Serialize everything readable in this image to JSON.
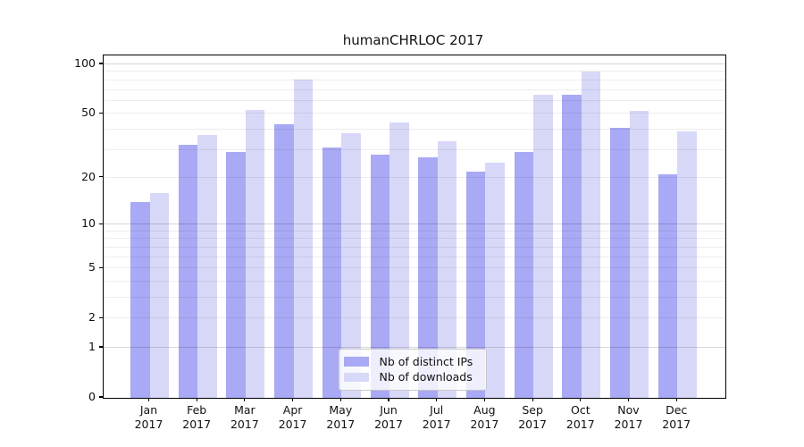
{
  "title": "humanCHRLOC 2017",
  "chart_data": {
    "type": "bar",
    "title": "humanCHRLOC 2017",
    "scale": "log1p",
    "grid": true,
    "legend_position": "lower center",
    "xlabel": "",
    "ylabel": "",
    "categories": [
      "Jan 2017",
      "Feb 2017",
      "Mar 2017",
      "Apr 2017",
      "May 2017",
      "Jun 2017",
      "Jul 2017",
      "Aug 2017",
      "Sep 2017",
      "Oct 2017",
      "Nov 2017",
      "Dec 2017"
    ],
    "series": [
      {
        "name": "Nb of distinct IPs",
        "color": "#a9a9f5",
        "values": [
          14,
          32,
          29,
          43,
          31,
          28,
          27,
          22,
          29,
          65,
          41,
          21
        ]
      },
      {
        "name": "Nb of downloads",
        "color": "#d8d8f8",
        "values": [
          16,
          37,
          53,
          81,
          38,
          44,
          34,
          25,
          65,
          91,
          52,
          39
        ]
      }
    ],
    "ylim": [
      0,
      114
    ],
    "y_ticks": [
      0,
      1,
      2,
      5,
      10,
      20,
      50,
      100
    ],
    "gridlines_major": [
      1,
      10,
      100
    ],
    "gridlines_minor": [
      2,
      3,
      4,
      5,
      6,
      7,
      8,
      9,
      20,
      30,
      40,
      50,
      60,
      70,
      80,
      90
    ]
  },
  "colors": {
    "bar_distinct_ips": "#a9a9f5",
    "bar_downloads": "#d8d8f8",
    "grid_major": "#d6d6d6",
    "grid_minor": "#ededed",
    "axis": "#000000",
    "background": "#ffffff"
  }
}
